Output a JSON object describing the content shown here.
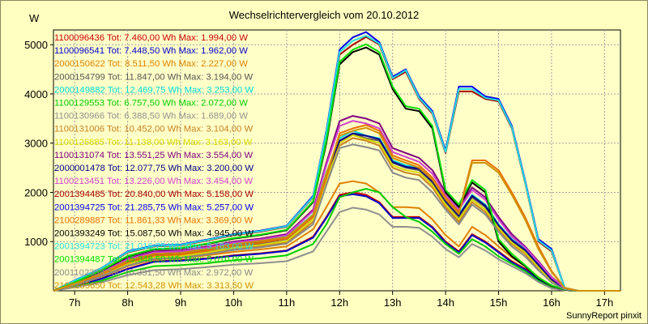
{
  "chart_data": {
    "type": "line",
    "title": "Wechselrichtervergleich vom 20.10.2012",
    "ylabel": "W",
    "xlabel": "",
    "credit": "SunnyReport pinxit",
    "x_ticks": [
      "7h",
      "8h",
      "9h",
      "10h",
      "11h",
      "12h",
      "13h",
      "14h",
      "15h",
      "16h",
      "17h"
    ],
    "y_ticks": [
      1000,
      2000,
      3000,
      4000,
      5000
    ],
    "xlim": [
      6.6,
      17.3
    ],
    "ylim": [
      0,
      5300
    ],
    "grid": true,
    "legend_position": "top-left",
    "x": [
      6.6,
      7.0,
      7.5,
      8.0,
      8.5,
      9.0,
      9.5,
      10.0,
      10.5,
      11.0,
      11.5,
      11.75,
      12.0,
      12.25,
      12.5,
      12.75,
      13.0,
      13.25,
      13.5,
      13.75,
      14.0,
      14.25,
      14.5,
      14.75,
      15.0,
      15.25,
      15.5,
      15.75,
      16.0,
      16.25,
      16.5,
      17.3
    ],
    "series": [
      {
        "name": "1100096436 Tot: 7.460,00 Wh Max: 1.994,00 W",
        "color": "#cc0000",
        "values": [
          0,
          100,
          250,
          450,
          600,
          620,
          660,
          720,
          760,
          820,
          1100,
          1500,
          1950,
          2000,
          1950,
          1800,
          1500,
          1500,
          1500,
          1300,
          1000,
          800,
          1150,
          1000,
          800,
          600,
          450,
          250,
          80,
          10,
          0,
          0
        ]
      },
      {
        "name": "1100096541 Tot: 7.448,50 Wh Max: 1.962,00 W",
        "color": "#0000cc",
        "values": [
          0,
          95,
          240,
          440,
          590,
          610,
          650,
          710,
          750,
          810,
          1080,
          1480,
          1920,
          1962,
          1920,
          1780,
          1480,
          1480,
          1480,
          1280,
          980,
          780,
          1130,
          980,
          780,
          580,
          430,
          230,
          70,
          10,
          0,
          0
        ]
      },
      {
        "name": "2000150622 Tot: 8.511,50 Wh Max: 2.227,00 W",
        "color": "#e08000",
        "values": [
          0,
          110,
          280,
          500,
          640,
          660,
          720,
          790,
          840,
          900,
          1250,
          1700,
          2180,
          2227,
          2180,
          2000,
          1700,
          1700,
          1680,
          1450,
          1130,
          900,
          1300,
          1130,
          900,
          680,
          500,
          280,
          90,
          10,
          0,
          0
        ]
      },
      {
        "name": "2000154799 Tot: 11.847,00 Wh Max: 3.194,00 W",
        "color": "#555555",
        "values": [
          0,
          130,
          320,
          560,
          700,
          720,
          800,
          900,
          960,
          1050,
          1500,
          2300,
          3000,
          3194,
          3100,
          3050,
          2600,
          2500,
          2450,
          2200,
          1800,
          1500,
          1900,
          1700,
          1300,
          1000,
          800,
          500,
          200,
          40,
          0,
          0
        ]
      },
      {
        "name": "2000149882 Tot: 12.469,75 Wh Max: 3.253,00 W",
        "color": "#00d8d8",
        "values": [
          0,
          150,
          360,
          620,
          760,
          780,
          860,
          960,
          1020,
          1100,
          1550,
          2400,
          3100,
          3253,
          3150,
          3100,
          2650,
          2550,
          2500,
          2250,
          1850,
          1550,
          1950,
          1750,
          1350,
          1050,
          850,
          550,
          250,
          50,
          0,
          0
        ]
      },
      {
        "name": "1100129553 Tot: 6.757,50 Wh Max: 2.072,00 W",
        "color": "#00cc00",
        "values": [
          0,
          80,
          200,
          380,
          500,
          520,
          560,
          620,
          660,
          720,
          950,
          1350,
          1900,
          2000,
          2072,
          2000,
          1700,
          1500,
          1400,
          1200,
          950,
          750,
          1050,
          900,
          700,
          550,
          400,
          200,
          60,
          10,
          0,
          0
        ]
      },
      {
        "name": "1100130966 Tot: 6.388,50 Wh Max: 1.689,00 W",
        "color": "#909090",
        "values": [
          0,
          70,
          170,
          320,
          420,
          440,
          480,
          530,
          560,
          600,
          800,
          1200,
          1600,
          1689,
          1650,
          1550,
          1300,
          1300,
          1280,
          1100,
          850,
          680,
          950,
          820,
          640,
          500,
          360,
          180,
          50,
          10,
          0,
          0
        ]
      },
      {
        "name": "1100131006 Tot: 10.452,00 Wh Max: 3.104,00 W",
        "color": "#c88020",
        "values": [
          0,
          120,
          300,
          530,
          670,
          690,
          760,
          850,
          900,
          980,
          1400,
          2200,
          2950,
          3104,
          3050,
          2950,
          2500,
          2400,
          2350,
          2100,
          1700,
          1400,
          1800,
          1600,
          1250,
          950,
          750,
          450,
          180,
          30,
          0,
          0
        ]
      },
      {
        "name": "1100126885 Tot: 11.138,00 Wh Max: 3.163,00 W",
        "color": "#d8d800",
        "values": [
          0,
          125,
          310,
          545,
          685,
          705,
          780,
          875,
          930,
          1010,
          1450,
          2250,
          3000,
          3163,
          3080,
          3000,
          2550,
          2450,
          2400,
          2150,
          1750,
          1450,
          1850,
          1650,
          1280,
          980,
          780,
          480,
          190,
          35,
          0,
          0
        ]
      },
      {
        "name": "1100131074 Tot: 13.551,25 Wh Max: 3.554,00 W",
        "color": "#800080",
        "values": [
          0,
          160,
          380,
          660,
          800,
          820,
          900,
          1000,
          1060,
          1150,
          1650,
          2600,
          3450,
          3554,
          3500,
          3400,
          2900,
          2800,
          2700,
          2450,
          2000,
          1700,
          2100,
          1900,
          1500,
          1150,
          900,
          600,
          280,
          60,
          0,
          0
        ]
      },
      {
        "name": "2000001478 Tot: 12.077,75 Wh Max: 3.200,00 W",
        "color": "#000088",
        "values": [
          0,
          140,
          340,
          590,
          730,
          750,
          830,
          930,
          990,
          1070,
          1520,
          2350,
          3050,
          3200,
          3150,
          3080,
          2620,
          2520,
          2480,
          2230,
          1830,
          1530,
          1930,
          1730,
          1330,
          1030,
          830,
          530,
          230,
          45,
          0,
          0
        ]
      },
      {
        "name": "1100213451 Tot: 13.226,00 Wh Max: 3.454,00 W",
        "color": "#d040d0",
        "values": [
          0,
          155,
          370,
          640,
          780,
          800,
          880,
          980,
          1040,
          1130,
          1620,
          2550,
          3350,
          3454,
          3400,
          3300,
          2820,
          2720,
          2620,
          2380,
          1950,
          1650,
          2050,
          1850,
          1450,
          1100,
          880,
          580,
          270,
          55,
          0,
          0
        ]
      },
      {
        "name": "2001394485 Tot: 20.840,00 Wh Max: 5.158,00 W",
        "color": "#aa0000",
        "values": [
          0,
          200,
          450,
          780,
          900,
          920,
          1020,
          1130,
          1200,
          1300,
          1900,
          3200,
          4800,
          5000,
          5158,
          5000,
          4300,
          4450,
          3900,
          3600,
          2800,
          4050,
          4050,
          3900,
          3850,
          3300,
          2200,
          1000,
          800,
          50,
          0,
          0
        ]
      },
      {
        "name": "2001394725 Tot: 21.285,75 Wh Max: 5.257,00 W",
        "color": "#0000ee",
        "values": [
          0,
          210,
          460,
          800,
          920,
          940,
          1040,
          1150,
          1220,
          1320,
          1930,
          3250,
          4900,
          5150,
          5257,
          5050,
          4350,
          4500,
          3950,
          3650,
          2850,
          4150,
          4150,
          3950,
          3900,
          3350,
          2250,
          1050,
          850,
          55,
          0,
          0
        ]
      },
      {
        "name": "2100289887 Tot: 11.861,33 Wh Max: 3.369,00 W",
        "color": "#e87000",
        "values": [
          0,
          135,
          330,
          575,
          715,
          735,
          815,
          915,
          975,
          1060,
          1500,
          2300,
          3200,
          3300,
          3369,
          3250,
          2750,
          2650,
          2550,
          2300,
          1900,
          1600,
          2650,
          2650,
          2450,
          2000,
          1500,
          900,
          400,
          60,
          0,
          0
        ]
      },
      {
        "name": "2001393249 Tot: 15.087,50 Wh Max: 4.945,00 W",
        "color": "#000000",
        "values": [
          0,
          170,
          400,
          700,
          840,
          860,
          950,
          1060,
          1130,
          1230,
          1800,
          3000,
          4600,
          4850,
          4945,
          4800,
          4100,
          3700,
          3650,
          3300,
          2000,
          1700,
          2200,
          2000,
          1000,
          700,
          500,
          250,
          100,
          20,
          0,
          0
        ]
      },
      {
        "name": "2001394723 Tot: 21.016,75 Wh Max: 5.183,00 W",
        "color": "#20e0e0",
        "values": [
          0,
          205,
          455,
          790,
          910,
          930,
          1030,
          1140,
          1210,
          1310,
          1910,
          3220,
          4850,
          5080,
          5183,
          5020,
          4320,
          4480,
          3920,
          3620,
          2820,
          4100,
          4100,
          3920,
          3870,
          3320,
          2220,
          1020,
          820,
          52,
          0,
          0
        ]
      },
      {
        "name": "2001394487 Tot: 15.348,50 Wh Max: 5.010,00 W",
        "color": "#00e000",
        "values": [
          0,
          175,
          410,
          710,
          850,
          870,
          960,
          1070,
          1140,
          1240,
          1820,
          3050,
          4650,
          4900,
          5010,
          4850,
          4150,
          3750,
          3700,
          3350,
          2050,
          1750,
          2250,
          2050,
          1050,
          750,
          520,
          270,
          110,
          25,
          0,
          0
        ]
      },
      {
        "name": "2001102358 Tot: 10.331,50 Wh Max: 2.972,00 W",
        "color": "#888888",
        "values": [
          0,
          115,
          290,
          510,
          650,
          670,
          740,
          830,
          880,
          960,
          1350,
          2150,
          2900,
          2972,
          2920,
          2850,
          2400,
          2300,
          2250,
          2000,
          1650,
          1350,
          1750,
          1550,
          1200,
          900,
          700,
          420,
          170,
          28,
          0,
          0
        ]
      },
      {
        "name": "2100285650 Tot: 12.543,28 Wh Max: 3.313,50 W",
        "color": "#d09000",
        "values": [
          0,
          145,
          350,
          610,
          750,
          770,
          850,
          950,
          1010,
          1090,
          1540,
          2380,
          3150,
          3250,
          3313,
          3200,
          2700,
          2600,
          2500,
          2260,
          1860,
          1560,
          2600,
          2600,
          2400,
          1950,
          1450,
          850,
          380,
          55,
          0,
          0
        ]
      }
    ]
  }
}
